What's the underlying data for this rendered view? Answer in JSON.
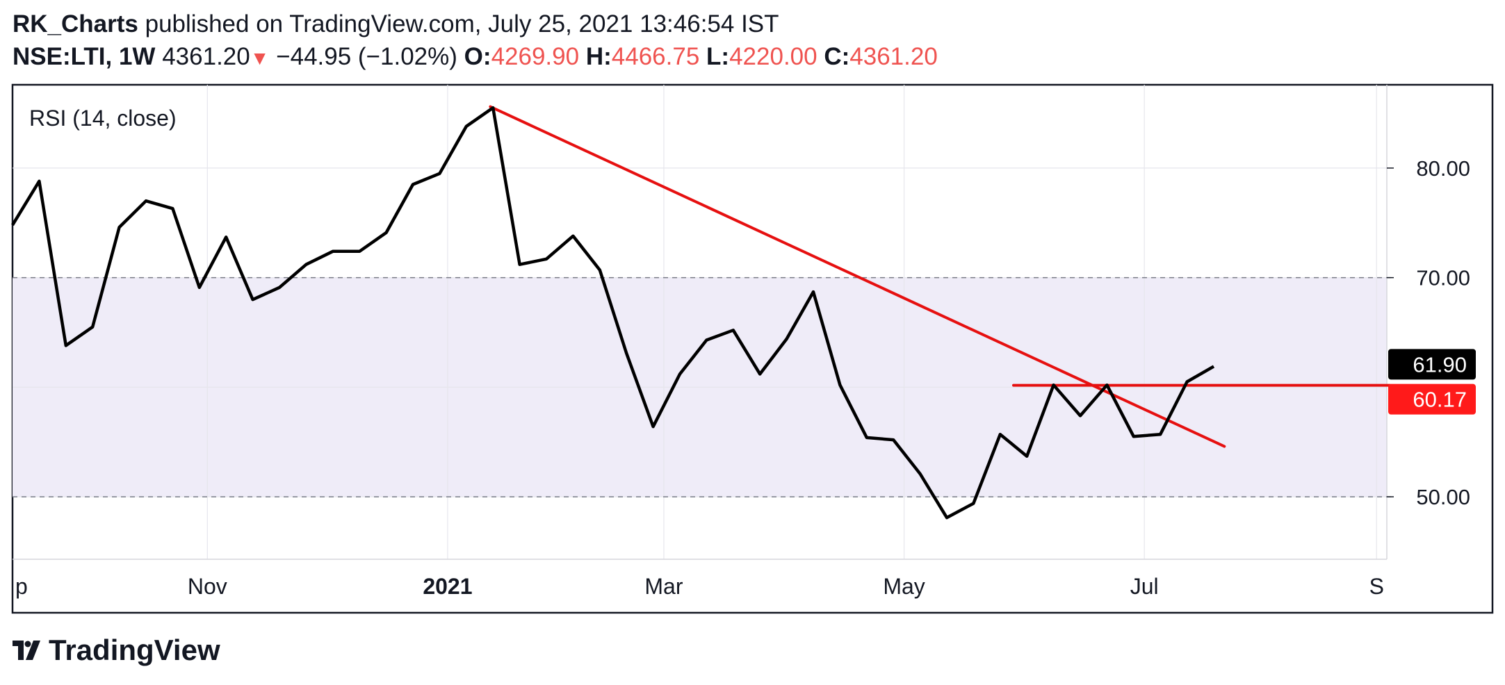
{
  "header": {
    "author": "RK_Charts",
    "published": "published on TradingView.com, July 25, 2021 13:46:54 IST",
    "symbol": "NSE:LTI, 1W",
    "last": "4361.20",
    "change": "−44.95 (−1.02%)",
    "o_label": "O:",
    "o_value": "4269.90",
    "h_label": "H:",
    "h_value": "4466.75",
    "l_label": "L:",
    "l_value": "4220.00",
    "c_label": "C:",
    "c_value": "4361.20"
  },
  "brand": {
    "name": "TradingView"
  },
  "colors": {
    "rsi_line": "#000000",
    "trendline": "#e61010",
    "band_fill": "#efecf8",
    "last_label_bg": "#000000",
    "level_label_bg": "#ff1a1a",
    "down": "#ef5350"
  },
  "chart_data": {
    "type": "line",
    "indicator_label": "RSI (14, close)",
    "ylim": [
      44.3,
      87.6
    ],
    "y_ticks": [
      "50.00",
      "70.00",
      "80.00"
    ],
    "y_tick_values": [
      50,
      70,
      80
    ],
    "grid_values": [
      60
    ],
    "x_tick_labels": [
      {
        "label": "p",
        "week": -0.5
      },
      {
        "label": "Nov",
        "week": 7.3
      },
      {
        "label": "2021",
        "week": 16.3,
        "bold": true
      },
      {
        "label": "Mar",
        "week": 24.4
      },
      {
        "label": "May",
        "week": 33.4
      },
      {
        "label": "Jul",
        "week": 42.4
      },
      {
        "label": "S",
        "week": 51.1
      }
    ],
    "band": {
      "lower": 50,
      "upper": 70
    },
    "series": [
      {
        "values": [
          74.8,
          78.8,
          63.8,
          65.5,
          74.6,
          77.0,
          76.3,
          69.1,
          73.7,
          68.0,
          69.1,
          71.2,
          72.4,
          72.4,
          74.1,
          78.5,
          79.5,
          83.8,
          85.5,
          71.2,
          71.7,
          73.8,
          70.7,
          63.1,
          56.4,
          61.2,
          64.3,
          65.2,
          61.2,
          64.4,
          68.7,
          60.2,
          55.4,
          55.2,
          52.1,
          48.1,
          49.4,
          55.7,
          53.7,
          60.2,
          57.4,
          60.2,
          55.5,
          55.7,
          60.5,
          61.9
        ]
      }
    ],
    "trendlines": [
      {
        "x": [
          17.9,
          45.4
        ],
        "y": [
          85.6,
          54.6
        ]
      },
      {
        "x": [
          37.5,
          51.6
        ],
        "y": [
          60.17,
          60.17
        ]
      }
    ],
    "price_labels": [
      {
        "text": "61.90",
        "value": 61.9,
        "kind": "last"
      },
      {
        "text": "60.17",
        "value": 60.17,
        "kind": "level"
      }
    ]
  }
}
